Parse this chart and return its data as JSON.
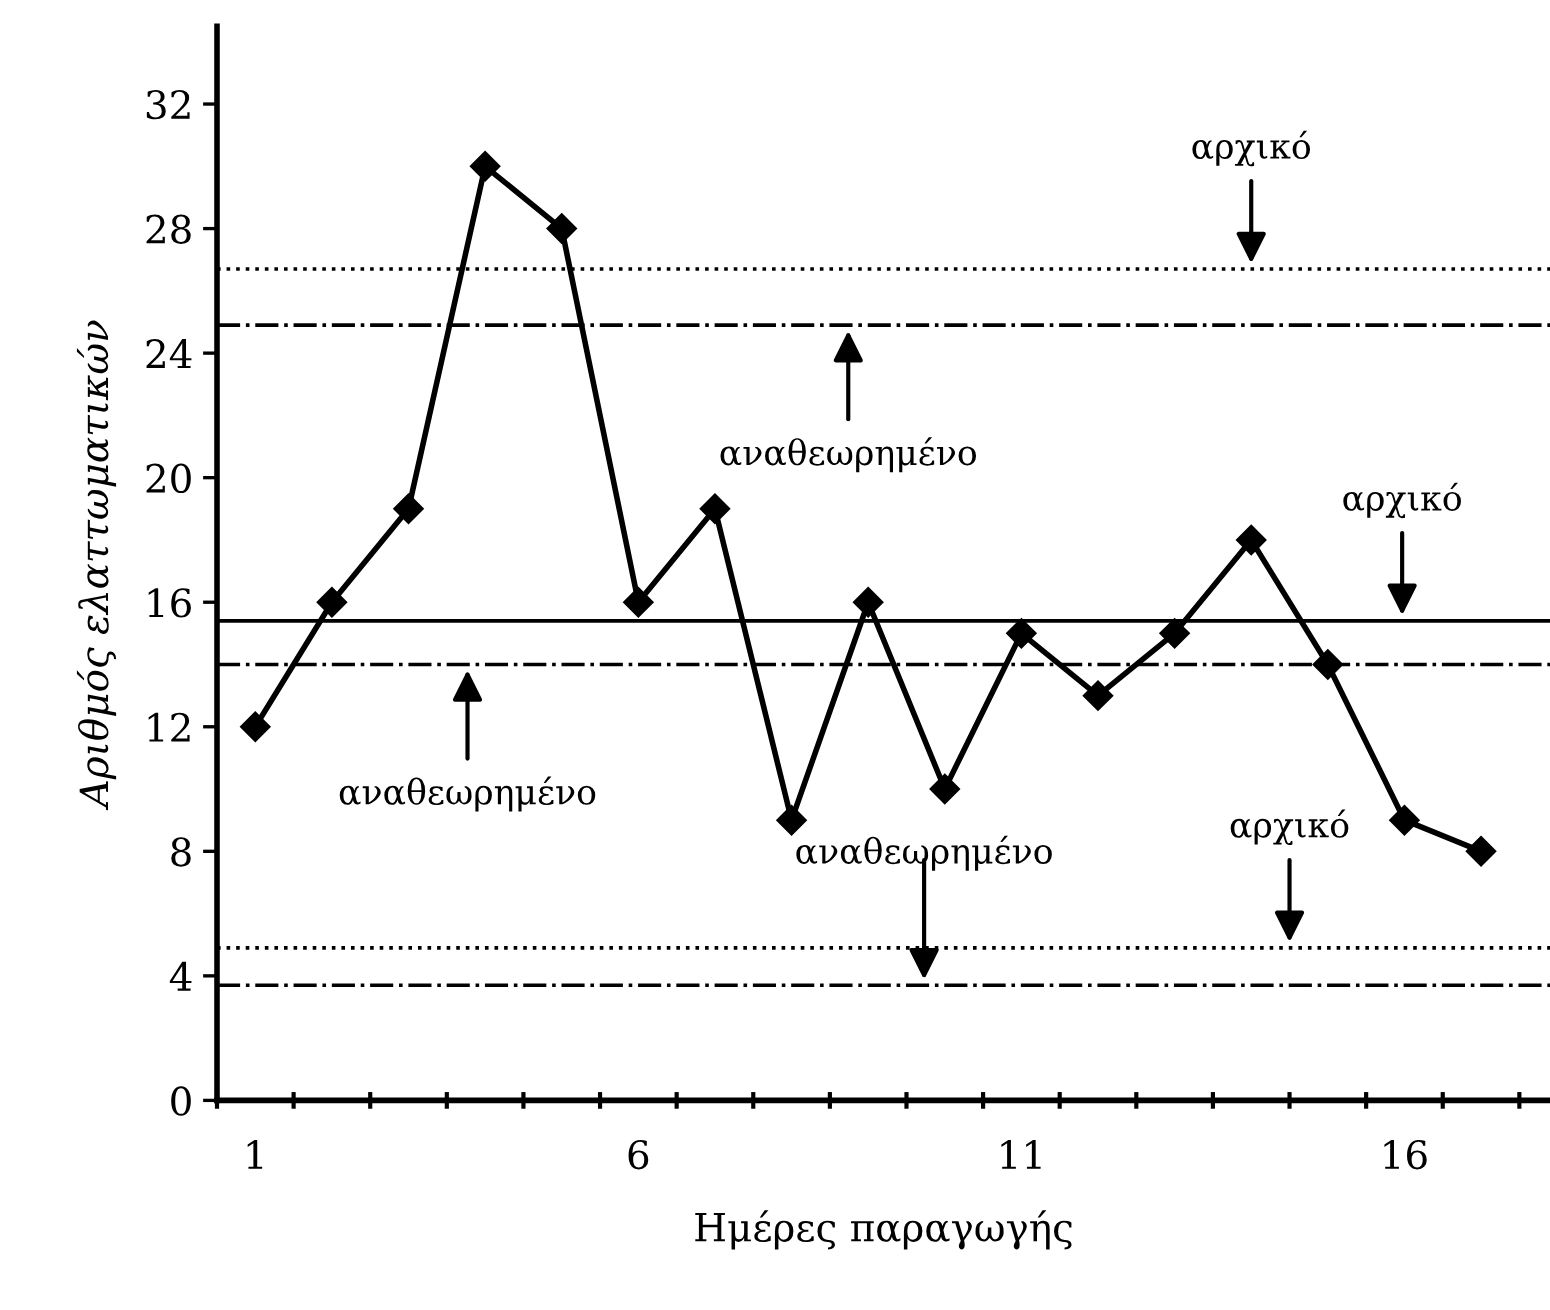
{
  "chart_data": {
    "type": "line",
    "xlabel": "Ημέρες παραγωγής",
    "ylabel": "Αριθμός ελαττωματικών",
    "x": [
      1,
      2,
      3,
      4,
      5,
      6,
      7,
      8,
      9,
      10,
      11,
      12,
      13,
      14,
      15,
      16,
      17
    ],
    "series": [
      {
        "color": "#000000",
        "values": [
          12,
          16,
          19,
          30,
          28,
          16,
          19,
          9,
          16,
          10,
          15,
          13,
          15,
          18,
          14,
          9,
          8
        ]
      }
    ],
    "marker": "diamond",
    "line_style": "solid",
    "grid": false,
    "xlim": [
      0.5,
      17.9
    ],
    "ylim": [
      0,
      34.5
    ],
    "xticks": [
      {
        "value": 0.5,
        "label": null
      },
      1,
      {
        "value": 1.5,
        "label": null
      },
      {
        "value": 2.5,
        "label": null
      },
      {
        "value": 3.5,
        "label": null
      },
      {
        "value": 4.5,
        "label": null
      },
      {
        "value": 5.5,
        "label": null
      },
      6,
      {
        "value": 6.5,
        "label": null
      },
      {
        "value": 7.5,
        "label": null
      },
      {
        "value": 8.5,
        "label": null
      },
      {
        "value": 9.5,
        "label": null
      },
      {
        "value": 10.5,
        "label": null
      },
      11,
      {
        "value": 11.5,
        "label": null
      },
      {
        "value": 12.5,
        "label": null
      },
      {
        "value": 13.5,
        "label": null
      },
      {
        "value": 14.5,
        "label": null
      },
      {
        "value": 15.5,
        "label": null
      },
      16,
      {
        "value": 16.5,
        "label": null
      },
      {
        "value": 17.5,
        "label": null
      }
    ],
    "yticks": [
      0,
      4,
      8,
      12,
      16,
      20,
      24,
      28,
      32
    ],
    "ref_lines": [
      {
        "axis": "y",
        "value": 26.7,
        "label": "αρχικό",
        "color": "#000000",
        "line_style": "dotted"
      },
      {
        "axis": "y",
        "value": 24.9,
        "label": "αναθεωρημένο",
        "color": "#000000",
        "line_style": "dashdot"
      },
      {
        "axis": "y",
        "value": 15.4,
        "label": "αρχικό",
        "color": "#000000",
        "line_style": "solid"
      },
      {
        "axis": "y",
        "value": 14.0,
        "label": "αναθεωρημένο",
        "color": "#000000",
        "line_style": "dashdot"
      },
      {
        "axis": "y",
        "value": 4.9,
        "label": "αρχικό",
        "color": "#000000",
        "line_style": "dotted"
      },
      {
        "axis": "y",
        "value": 3.7,
        "label": "αναθεωρημένο",
        "color": "#000000",
        "line_style": "dashdot"
      }
    ]
  }
}
